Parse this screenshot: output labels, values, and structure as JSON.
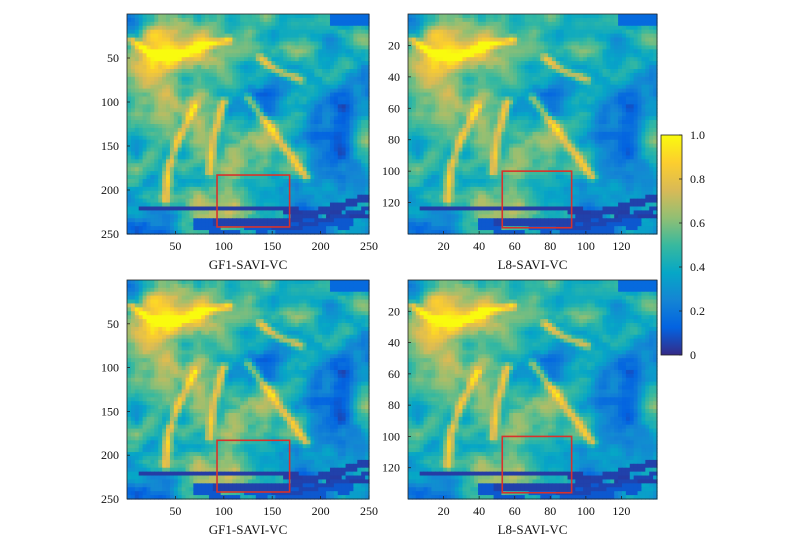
{
  "chart_data": [
    {
      "type": "heatmap",
      "title": "GF1-SAVI-VC",
      "xlim": [
        0,
        250
      ],
      "ylim": [
        0,
        250
      ],
      "x_ticks": [
        50,
        100,
        150,
        200,
        250
      ],
      "y_ticks": [
        50,
        100,
        150,
        200,
        250
      ],
      "highlight_box": {
        "x": [
          93,
          168
        ],
        "y": [
          183,
          242
        ]
      }
    },
    {
      "type": "heatmap",
      "title": "L8-SAVI-VC",
      "xlim": [
        0,
        140
      ],
      "ylim": [
        0,
        140
      ],
      "x_ticks": [
        20,
        40,
        60,
        80,
        100,
        120
      ],
      "y_ticks": [
        20,
        40,
        60,
        80,
        100,
        120
      ],
      "highlight_box": {
        "x": [
          53,
          92
        ],
        "y": [
          100,
          136
        ]
      }
    },
    {
      "type": "heatmap",
      "title": "GF1-SAVI-VC",
      "xlim": [
        0,
        250
      ],
      "ylim": [
        0,
        250
      ],
      "x_ticks": [
        50,
        100,
        150,
        200,
        250
      ],
      "y_ticks": [
        50,
        100,
        150,
        200,
        250
      ],
      "highlight_box": {
        "x": [
          93,
          168
        ],
        "y": [
          183,
          242
        ]
      }
    },
    {
      "type": "heatmap",
      "title": "L8-SAVI-VC",
      "xlim": [
        0,
        140
      ],
      "ylim": [
        0,
        140
      ],
      "x_ticks": [
        20,
        40,
        60,
        80,
        100,
        120
      ],
      "y_ticks": [
        20,
        40,
        60,
        80,
        100,
        120
      ],
      "highlight_box": {
        "x": [
          53,
          92
        ],
        "y": [
          100,
          136
        ]
      }
    }
  ],
  "colorbar": {
    "range": [
      0,
      1
    ],
    "ticks": [
      "0",
      "0.2",
      "0.4",
      "0.6",
      "0.8",
      "1.0"
    ],
    "colormap": "parula",
    "colors": [
      "#352a87",
      "#0363e1",
      "#1485d4",
      "#06a7c6",
      "#38b99e",
      "#92bf73",
      "#d9ba56",
      "#fcce2e",
      "#f9fb0e"
    ]
  },
  "colors": {
    "highlight_box": "#d9312b"
  }
}
